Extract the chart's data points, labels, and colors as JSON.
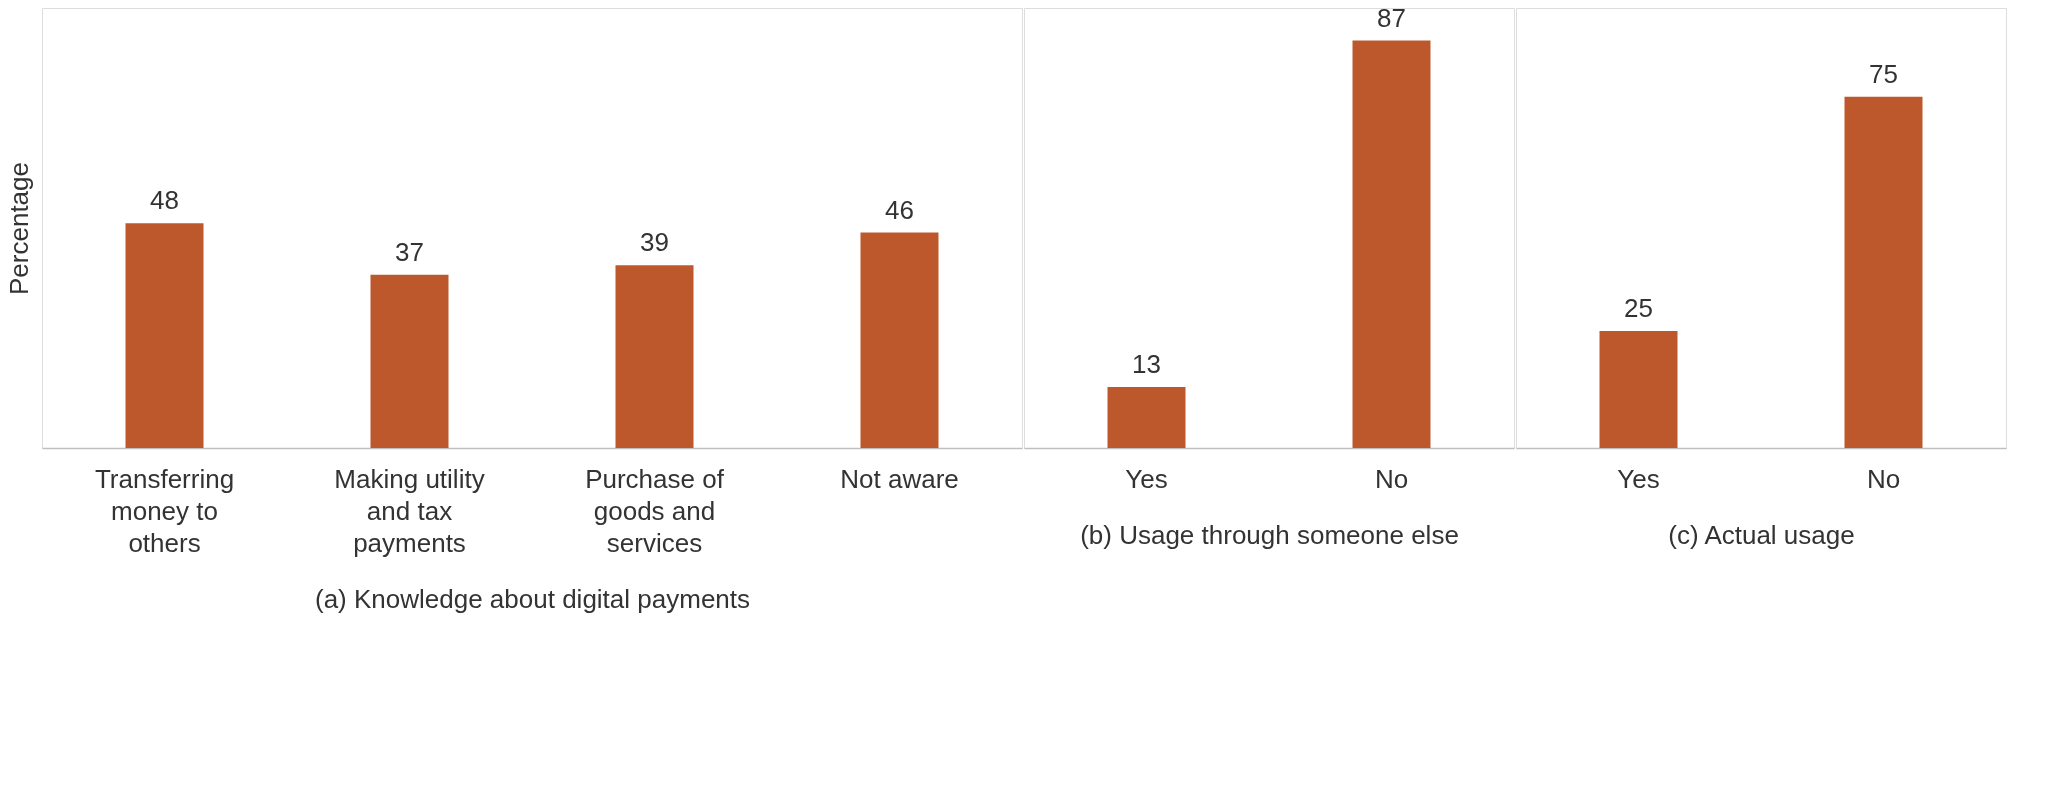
{
  "chart_data": [
    {
      "type": "bar",
      "ylabel": "Percentage",
      "xlabel": "(a) Knowledge about digital payments",
      "categories": [
        "Transferring money to others",
        "Making utility and tax payments",
        "Purchase of goods and services",
        "Not aware"
      ],
      "values": [
        48,
        37,
        39,
        46
      ],
      "color": "#bd582c",
      "data_labels": true,
      "tick_labels": "x"
    },
    {
      "type": "bar",
      "xlabel": "(b) Usage through someone else",
      "categories": [
        "Yes",
        "No"
      ],
      "values": [
        13,
        87
      ],
      "color": "#bd582c",
      "data_labels": true,
      "tick_labels": "x"
    },
    {
      "type": "bar",
      "xlabel": "(c) Actual usage",
      "categories": [
        "Yes",
        "No"
      ],
      "values": [
        25,
        75
      ],
      "color": "#bd582c",
      "data_labels": true,
      "tick_labels": "x"
    }
  ]
}
